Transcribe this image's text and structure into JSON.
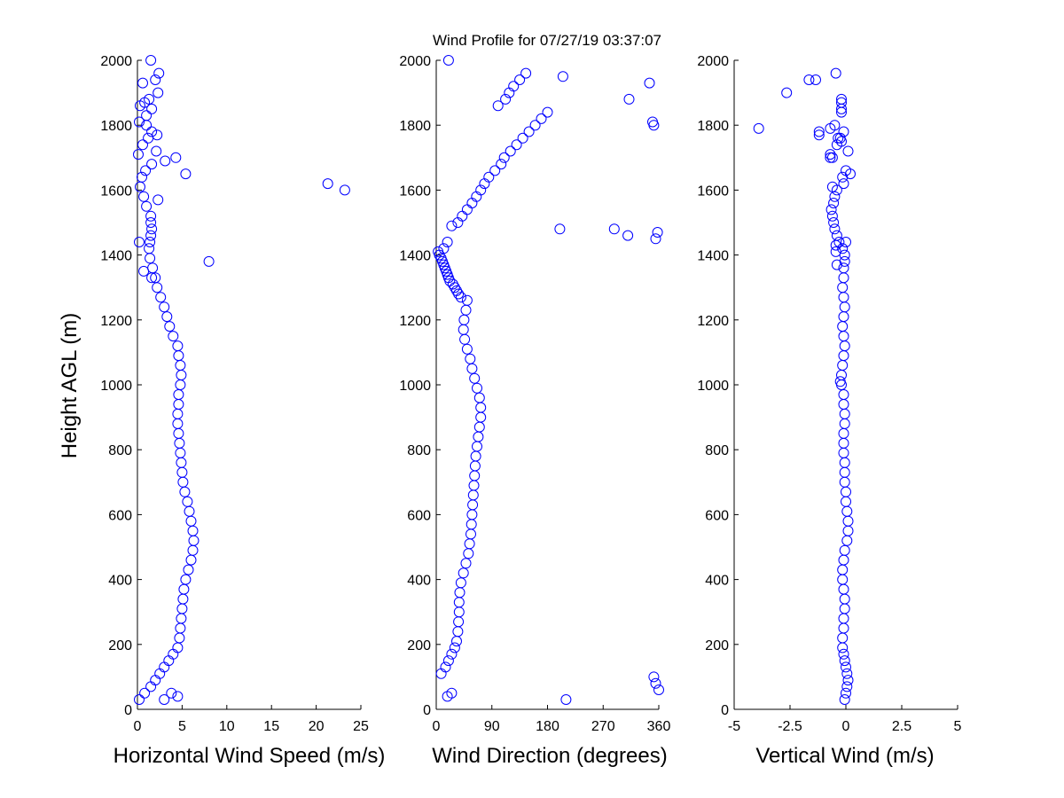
{
  "chart_data": [
    {
      "type": "scatter",
      "title": "Wind Profile for  07/27/19 03:37:07",
      "xlabel": "Horizontal Wind Speed (m/s)",
      "ylabel": "Height AGL (m)",
      "xlim": [
        0,
        25
      ],
      "ylim": [
        0,
        2000
      ],
      "xticks": [
        0,
        5,
        10,
        15,
        20,
        25
      ],
      "xtick_labels": [
        "0",
        "5",
        "10",
        "15",
        "20",
        "25"
      ],
      "yticks": [
        0,
        200,
        400,
        600,
        800,
        1000,
        1200,
        1400,
        1600,
        1800,
        2000
      ],
      "ytick_labels": [
        "0",
        "200",
        "400",
        "600",
        "800",
        "1000",
        "1200",
        "1400",
        "1600",
        "1800",
        "2000"
      ],
      "marker_color": "#0000ff",
      "series": [
        {
          "x": [
            0.2,
            0.8,
            1.5,
            2.0,
            2.5,
            3.0,
            3.5,
            4.0,
            4.5,
            4.7,
            4.8,
            4.9,
            5.0,
            5.1,
            5.2,
            5.4,
            5.7,
            6.0,
            6.2,
            6.3,
            6.2,
            6.0,
            5.8,
            5.6,
            5.3,
            5.1,
            5.0,
            4.9,
            4.8,
            4.7,
            4.6,
            4.5,
            4.5,
            4.6,
            4.6,
            4.8,
            4.9,
            4.8,
            4.6,
            4.5,
            4.0,
            3.6,
            3.3,
            3.0,
            2.6,
            2.2,
            2.0,
            1.7,
            1.4,
            1.3,
            1.4,
            1.5,
            1.6,
            1.5,
            1.5,
            1.0,
            0.7,
            0.3,
            0.5,
            0.9,
            1.6,
            4.3,
            2.1,
            0.6,
            1.2,
            2.2,
            1.6,
            1.0,
            0.2,
            1.0,
            1.6,
            0.3,
            0.8,
            1.3,
            2.3,
            0.6,
            2.0,
            2.4,
            1.5,
            3.0,
            4.5,
            3.8,
            8.0,
            0.7,
            1.6,
            0.2,
            2.3,
            23.2,
            21.3,
            5.4,
            3.1,
            0.1
          ],
          "y": [
            30,
            50,
            70,
            90,
            110,
            130,
            150,
            170,
            190,
            220,
            250,
            280,
            310,
            340,
            370,
            400,
            430,
            460,
            490,
            520,
            550,
            580,
            610,
            640,
            670,
            700,
            730,
            760,
            790,
            820,
            850,
            880,
            910,
            940,
            970,
            1000,
            1030,
            1060,
            1090,
            1120,
            1150,
            1180,
            1210,
            1240,
            1270,
            1300,
            1330,
            1360,
            1390,
            1420,
            1440,
            1460,
            1480,
            1500,
            1520,
            1550,
            1580,
            1610,
            1640,
            1660,
            1680,
            1700,
            1720,
            1740,
            1760,
            1770,
            1780,
            1800,
            1810,
            1830,
            1850,
            1860,
            1870,
            1880,
            1900,
            1930,
            1940,
            1960,
            2000,
            30,
            40,
            50,
            1380,
            1350,
            1330,
            1440,
            1570,
            1600,
            1620,
            1650,
            1690,
            1710
          ]
        }
      ]
    },
    {
      "type": "scatter",
      "title": "",
      "xlabel": "Wind Direction (degrees)",
      "ylabel": "",
      "xlim": [
        0,
        360
      ],
      "ylim": [
        0,
        2000
      ],
      "xticks": [
        0,
        90,
        180,
        270,
        360
      ],
      "xtick_labels": [
        "0",
        "90",
        "180",
        "270",
        "360"
      ],
      "yticks": [
        0,
        200,
        400,
        600,
        800,
        1000,
        1200,
        1400,
        1600,
        1800,
        2000
      ],
      "ytick_labels": [
        "0",
        "200",
        "400",
        "600",
        "800",
        "1000",
        "1200",
        "1400",
        "1600",
        "1800",
        "2000"
      ],
      "marker_color": "#0000ff",
      "series": [
        {
          "x": [
            8,
            15,
            20,
            25,
            30,
            33,
            35,
            36,
            37,
            37,
            38,
            40,
            44,
            48,
            52,
            54,
            56,
            57,
            58,
            59,
            60,
            61,
            62,
            63,
            64,
            66,
            68,
            70,
            72,
            72,
            70,
            66,
            62,
            58,
            55,
            50,
            46,
            44,
            45,
            48,
            50,
            40,
            36,
            33,
            30,
            27,
            22,
            20,
            18,
            16,
            14,
            12,
            10,
            8,
            5,
            3,
            12,
            18,
            25,
            35,
            42,
            50,
            58,
            65,
            72,
            78,
            85,
            95,
            105,
            110,
            120,
            130,
            140,
            150,
            160,
            170,
            180,
            100,
            112,
            118,
            125,
            135,
            145,
            200,
            205,
            350,
            352,
            355,
            358,
            288,
            310,
            312,
            345,
            360,
            355,
            352,
            210,
            18,
            25,
            20
          ],
          "y": [
            110,
            130,
            150,
            170,
            190,
            210,
            240,
            270,
            300,
            330,
            360,
            390,
            420,
            450,
            480,
            510,
            540,
            570,
            600,
            630,
            660,
            690,
            720,
            750,
            780,
            810,
            840,
            870,
            900,
            930,
            960,
            990,
            1020,
            1050,
            1080,
            1110,
            1140,
            1170,
            1200,
            1230,
            1260,
            1270,
            1280,
            1290,
            1300,
            1310,
            1320,
            1330,
            1340,
            1350,
            1360,
            1370,
            1380,
            1390,
            1400,
            1410,
            1420,
            1440,
            1490,
            1500,
            1520,
            1540,
            1560,
            1580,
            1600,
            1620,
            1640,
            1660,
            1680,
            1700,
            1720,
            1740,
            1760,
            1780,
            1800,
            1820,
            1840,
            1860,
            1880,
            1900,
            1920,
            1940,
            1960,
            1480,
            1950,
            1810,
            1800,
            1450,
            1470,
            1480,
            1460,
            1880,
            1930,
            60,
            80,
            100,
            30,
            40,
            50,
            2000
          ]
        }
      ]
    },
    {
      "type": "scatter",
      "title": "",
      "xlabel": "Vertical Wind (m/s)",
      "ylabel": "",
      "xlim": [
        -5,
        5
      ],
      "ylim": [
        0,
        2000
      ],
      "xticks": [
        -5,
        -2.5,
        0,
        2.5,
        5
      ],
      "xtick_labels": [
        "-5",
        "-2.5",
        "0",
        "2.5",
        "5"
      ],
      "yticks": [
        0,
        200,
        400,
        600,
        800,
        1000,
        1200,
        1400,
        1600,
        1800,
        2000
      ],
      "ytick_labels": [
        "0",
        "200",
        "400",
        "600",
        "800",
        "1000",
        "1200",
        "1400",
        "1600",
        "1800",
        "2000"
      ],
      "marker_color": "#0000ff",
      "series": [
        {
          "x": [
            -0.05,
            0.0,
            0.05,
            0.1,
            0.05,
            0.0,
            -0.05,
            -0.1,
            -0.15,
            -0.15,
            -0.1,
            -0.1,
            -0.05,
            -0.05,
            -0.1,
            -0.15,
            -0.15,
            -0.1,
            -0.05,
            0.05,
            0.1,
            0.1,
            0.05,
            0.0,
            0.0,
            -0.05,
            -0.05,
            -0.05,
            -0.1,
            -0.1,
            -0.1,
            -0.05,
            -0.05,
            -0.1,
            -0.1,
            -0.2,
            -0.25,
            -0.2,
            -0.15,
            -0.1,
            -0.05,
            -0.1,
            -0.15,
            -0.1,
            -0.05,
            -0.1,
            -0.15,
            -0.1,
            -0.1,
            -0.05,
            -0.05,
            -0.15,
            -0.3,
            -0.4,
            -0.5,
            -0.55,
            -0.6,
            -0.65,
            -0.55,
            -0.5,
            -0.4,
            -0.6,
            -0.4,
            -0.45,
            -0.45,
            -0.6,
            -0.7,
            -0.4,
            -0.2,
            -0.35,
            -0.15,
            -0.1,
            0.0,
            0.1,
            0.0,
            -0.5,
            -0.1,
            -0.2,
            -1.2,
            -1.2,
            -0.7,
            -1.35,
            -3.9,
            -0.2,
            -0.45,
            -0.2,
            -0.2,
            -2.65,
            -1.65,
            -0.7,
            -0.25,
            0.2
          ],
          "y": [
            30,
            50,
            70,
            90,
            110,
            130,
            150,
            170,
            190,
            220,
            250,
            280,
            310,
            340,
            370,
            400,
            430,
            460,
            490,
            520,
            550,
            580,
            610,
            640,
            670,
            700,
            730,
            760,
            790,
            820,
            850,
            880,
            910,
            940,
            970,
            1000,
            1010,
            1030,
            1060,
            1090,
            1120,
            1150,
            1180,
            1210,
            1240,
            1270,
            1300,
            1330,
            1360,
            1380,
            1400,
            1420,
            1440,
            1460,
            1480,
            1500,
            1520,
            1540,
            1560,
            1580,
            1600,
            1610,
            1370,
            1410,
            1430,
            1700,
            1710,
            1740,
            1750,
            1760,
            1640,
            1620,
            1660,
            1720,
            1440,
            1800,
            1780,
            1840,
            1770,
            1780,
            1790,
            1940,
            1790,
            1850,
            1960,
            1870,
            1880,
            1900,
            1940,
            1700,
            1760,
            1650
          ]
        }
      ]
    }
  ]
}
